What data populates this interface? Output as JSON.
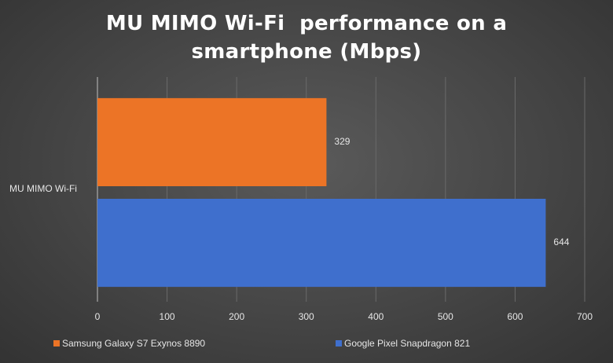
{
  "chart_data": {
    "type": "hbar",
    "title": "MU MIMO Wi-Fi  performance on a smartphone (Mbps)",
    "categories": [
      "MU MIMO Wi-Fi"
    ],
    "series": [
      {
        "name": "Samsung Galaxy S7 Exynos 8890",
        "color": "#ec7426",
        "values": [
          329
        ]
      },
      {
        "name": "Google Pixel Snapdragon 821",
        "color": "#3f6fcd",
        "values": [
          644
        ]
      }
    ],
    "xlim": [
      0,
      700
    ],
    "xticks": [
      0,
      100,
      200,
      300,
      400,
      500,
      600,
      700
    ],
    "grid": true,
    "legend": "bottom"
  }
}
